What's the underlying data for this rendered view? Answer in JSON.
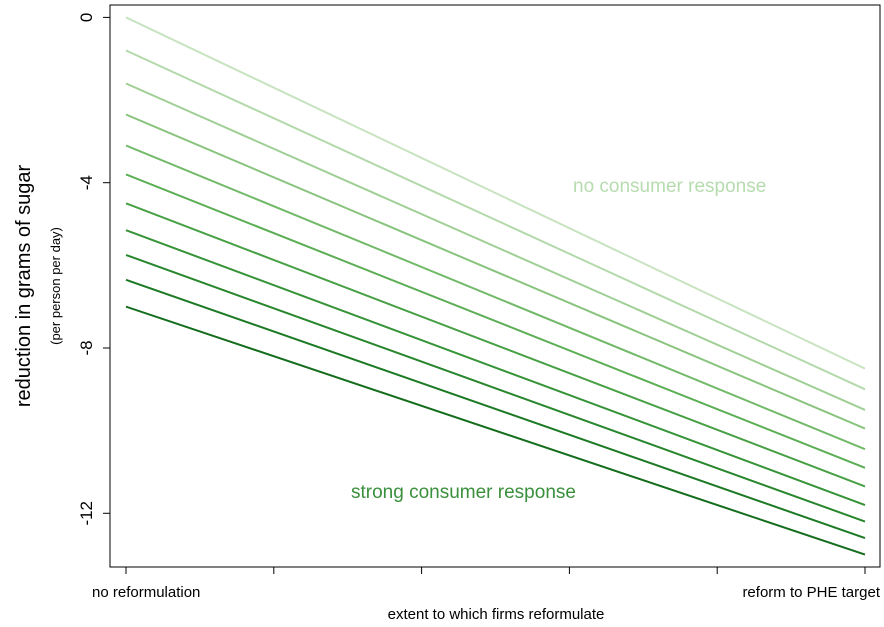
{
  "chart_data": {
    "type": "line",
    "xlabel": "extent to which firms reformulate",
    "ylabel": "reduction in grams of sugar",
    "ylabel_sub": "(per person per day)",
    "x_tick_labels": [
      "no reformulation",
      "",
      "",
      "",
      "",
      "reform to PHE target"
    ],
    "x": [
      0,
      1
    ],
    "xlim": [
      0,
      1
    ],
    "y_ticks": [
      0,
      -4,
      -8,
      -12
    ],
    "y_tick_labels": [
      "0",
      "-4",
      "-8",
      "-12"
    ],
    "ylim": [
      -13.3,
      0.3
    ],
    "grid": false,
    "series": [
      {
        "values": [
          0.0,
          -8.5
        ],
        "color": "#c7e3c0"
      },
      {
        "values": [
          -0.8,
          -9.0
        ],
        "color": "#b3d9aa"
      },
      {
        "values": [
          -1.6,
          -9.5
        ],
        "color": "#9fcf95"
      },
      {
        "values": [
          -2.35,
          -9.95
        ],
        "color": "#89c47f"
      },
      {
        "values": [
          -3.1,
          -10.45
        ],
        "color": "#72b969"
      },
      {
        "values": [
          -3.8,
          -10.9
        ],
        "color": "#5cae55"
      },
      {
        "values": [
          -4.5,
          -11.35
        ],
        "color": "#47a044"
      },
      {
        "values": [
          -5.15,
          -11.8
        ],
        "color": "#369337"
      },
      {
        "values": [
          -5.75,
          -12.2
        ],
        "color": "#28862c"
      },
      {
        "values": [
          -6.35,
          -12.6
        ],
        "color": "#1d7a24"
      },
      {
        "values": [
          -7.0,
          -13.0
        ],
        "color": "#146d1d"
      }
    ],
    "annotations": [
      {
        "text": "no consumer response",
        "color": "#b7dcb0"
      },
      {
        "text": "strong consumer response",
        "color": "#3a8f3c"
      }
    ]
  }
}
